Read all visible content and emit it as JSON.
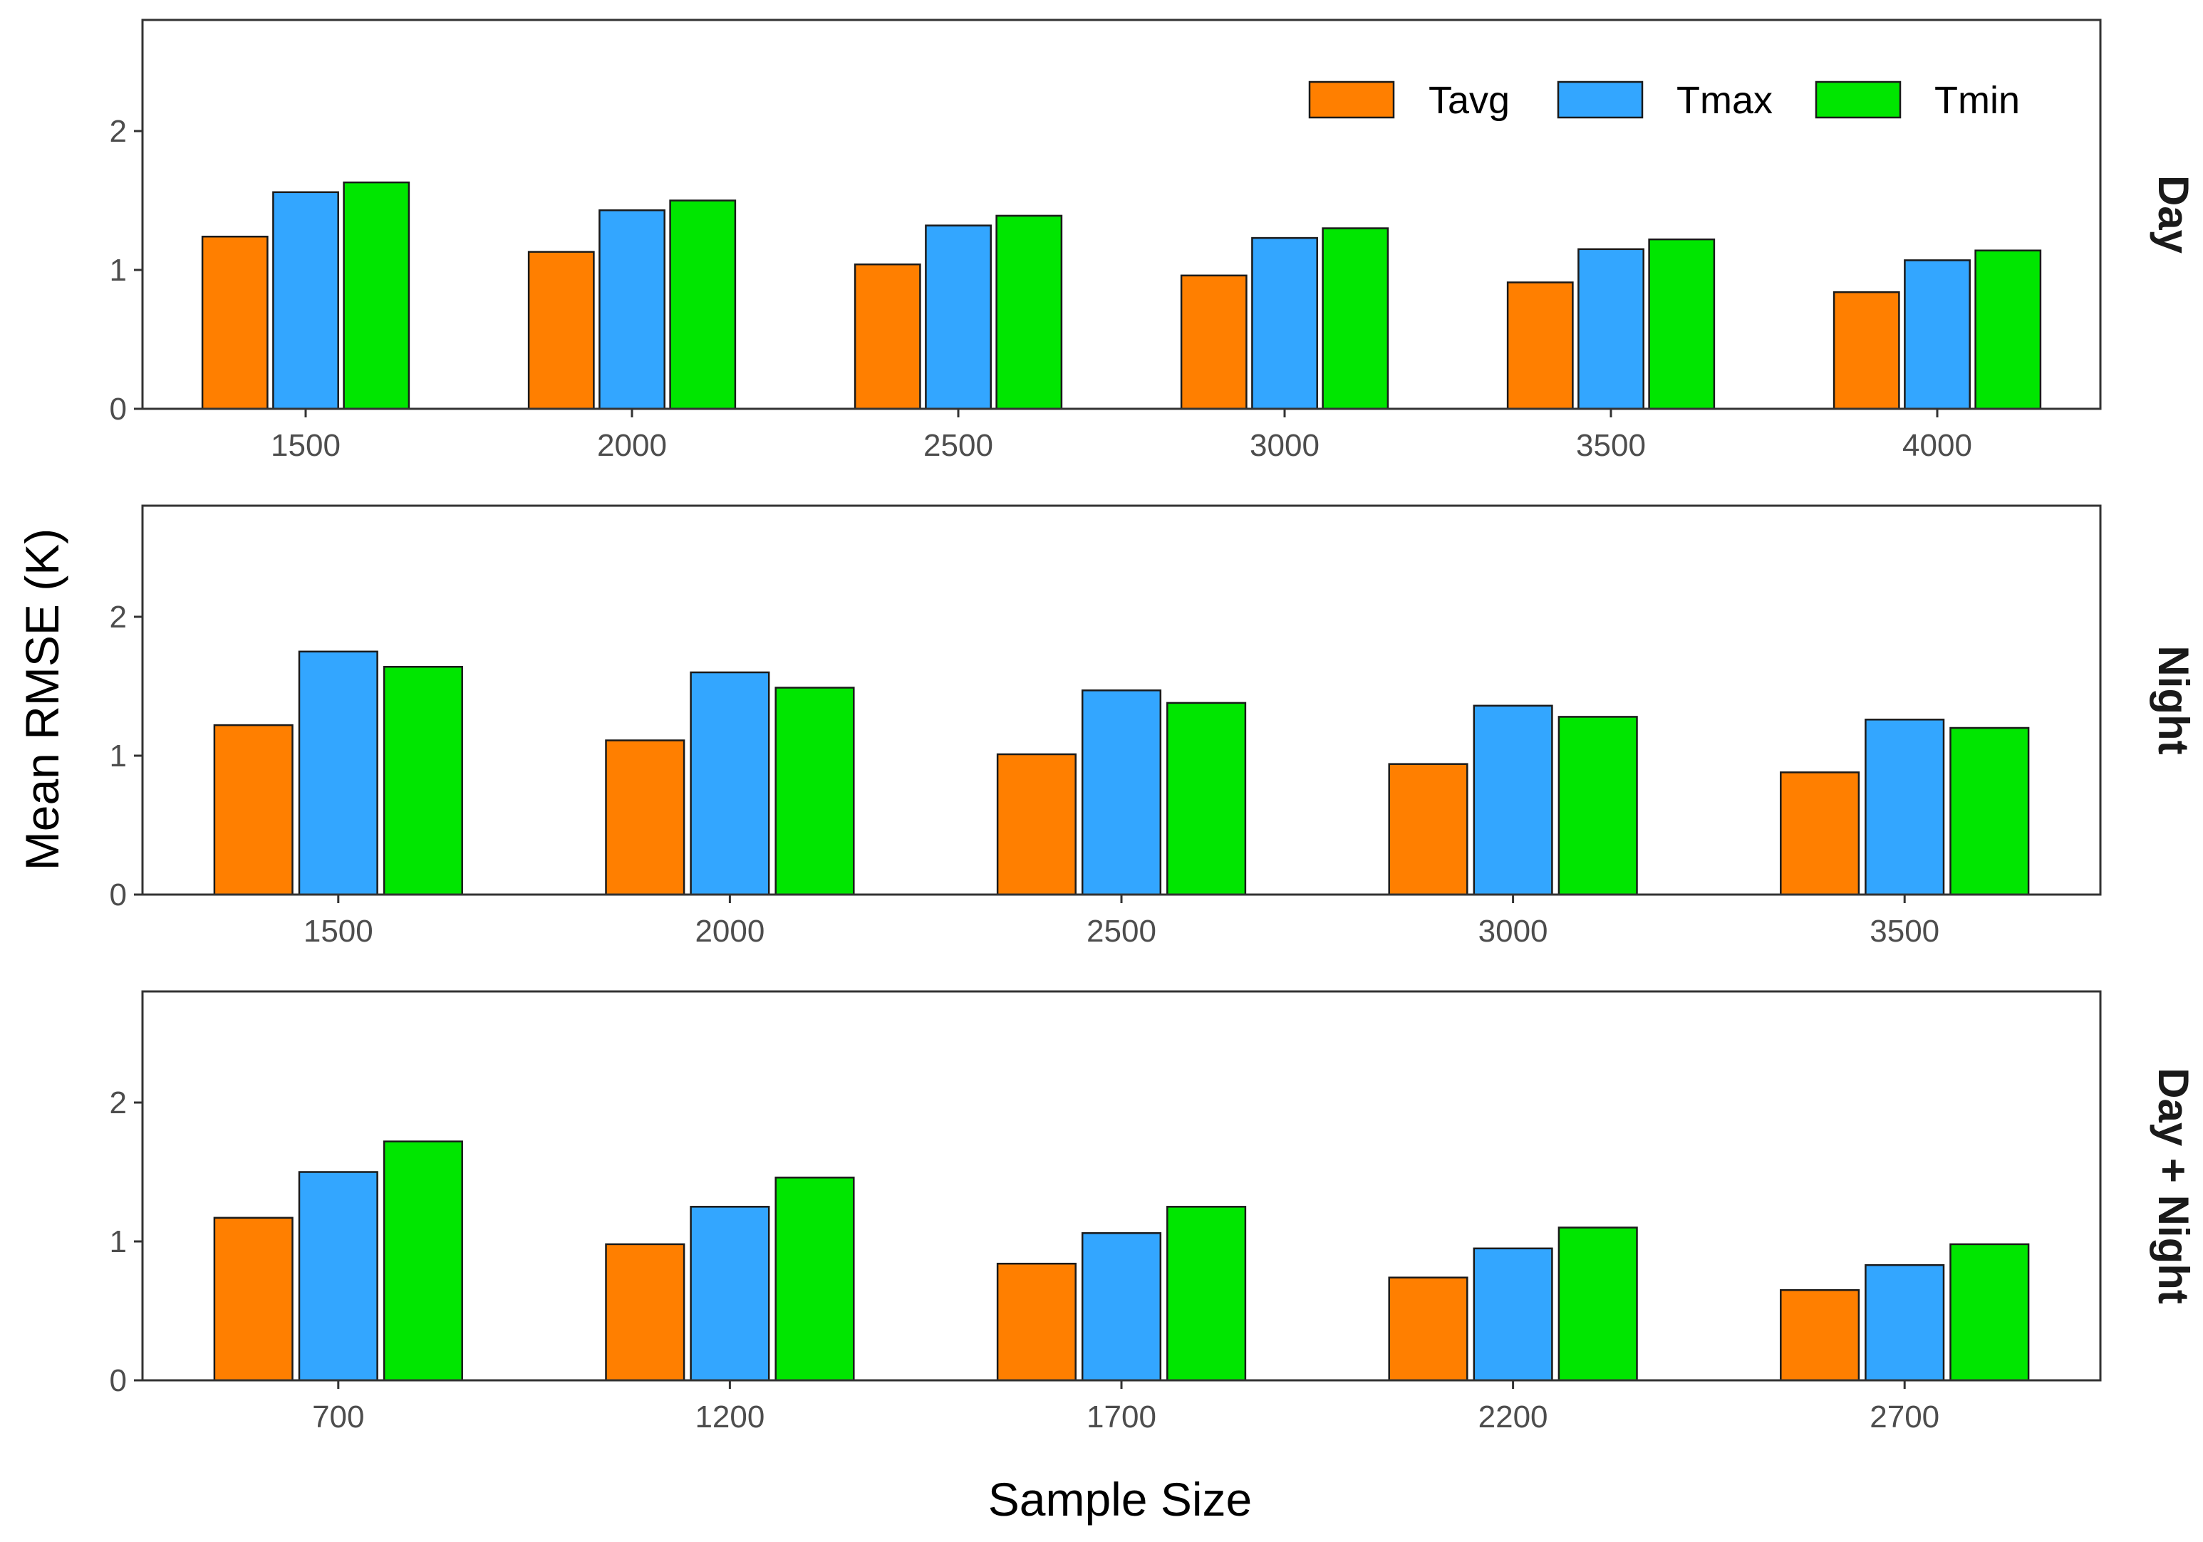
{
  "chart_data": {
    "type": "bar",
    "ylabel": "Mean RMSE (K)",
    "xlabel": "Sample Size",
    "ylim": [
      0,
      2.8
    ],
    "yticks": [
      0,
      1,
      2
    ],
    "legend": {
      "position": "top-right",
      "entries": [
        {
          "name": "Tavg",
          "color": "#FF7F00"
        },
        {
          "name": "Tmax",
          "color": "#33A6FF"
        },
        {
          "name": "Tmin",
          "color": "#00E600"
        }
      ]
    },
    "panels": [
      {
        "strip": "Day",
        "categories": [
          "1500",
          "2000",
          "2500",
          "3000",
          "3500",
          "4000"
        ],
        "series": [
          {
            "name": "Tavg",
            "values": [
              1.24,
              1.13,
              1.04,
              0.96,
              0.91,
              0.84
            ]
          },
          {
            "name": "Tmax",
            "values": [
              1.56,
              1.43,
              1.32,
              1.23,
              1.15,
              1.07
            ]
          },
          {
            "name": "Tmin",
            "values": [
              1.63,
              1.5,
              1.39,
              1.3,
              1.22,
              1.14
            ]
          }
        ]
      },
      {
        "strip": "Night",
        "categories": [
          "1500",
          "2000",
          "2500",
          "3000",
          "3500"
        ],
        "series": [
          {
            "name": "Tavg",
            "values": [
              1.22,
              1.11,
              1.01,
              0.94,
              0.88
            ]
          },
          {
            "name": "Tmax",
            "values": [
              1.75,
              1.6,
              1.47,
              1.36,
              1.26
            ]
          },
          {
            "name": "Tmin",
            "values": [
              1.64,
              1.49,
              1.38,
              1.28,
              1.2
            ]
          }
        ]
      },
      {
        "strip": "Day + Night",
        "categories": [
          "700",
          "1200",
          "1700",
          "2200",
          "2700"
        ],
        "series": [
          {
            "name": "Tavg",
            "values": [
              1.17,
              0.98,
              0.84,
              0.74,
              0.65
            ]
          },
          {
            "name": "Tmax",
            "values": [
              1.5,
              1.25,
              1.06,
              0.95,
              0.83
            ]
          },
          {
            "name": "Tmin",
            "values": [
              1.72,
              1.46,
              1.25,
              1.1,
              0.98
            ]
          }
        ]
      }
    ]
  }
}
